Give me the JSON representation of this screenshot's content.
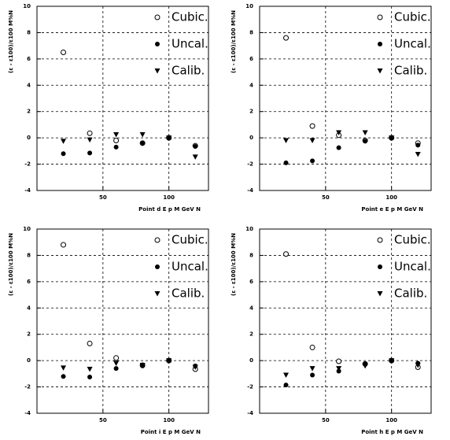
{
  "chart_data": [
    {
      "type": "scatter",
      "xlabel": "Point d   E p M GeV N",
      "ylabel": "(ε - ε100)/ε100 M%N",
      "x": [
        20,
        40,
        60,
        80,
        100,
        120
      ],
      "xlim": [
        0,
        130
      ],
      "ylim": [
        -4,
        10
      ],
      "xticks": [
        50,
        100
      ],
      "yticks": [
        -4,
        -2,
        0,
        2,
        4,
        6,
        8,
        10
      ],
      "grid": true,
      "series": [
        {
          "name": "Cubic.",
          "marker": "open-circle",
          "color": "#000000",
          "values": [
            6.5,
            0.35,
            -0.2,
            -0.4,
            0,
            -0.6
          ]
        },
        {
          "name": "Uncal.",
          "marker": "filled-circle",
          "color": "#000000",
          "values": [
            -1.2,
            -1.15,
            -0.7,
            -0.4,
            0,
            -0.65
          ]
        },
        {
          "name": "Calib.",
          "marker": "triangle-down",
          "color": "#000000",
          "values": [
            -0.25,
            -0.15,
            0.25,
            0.25,
            0,
            -1.45
          ]
        }
      ]
    },
    {
      "type": "scatter",
      "xlabel": "Point e   E p M GeV N",
      "ylabel": "(ε - ε100)/ε100 M%N",
      "x": [
        20,
        40,
        60,
        80,
        100,
        120
      ],
      "xlim": [
        0,
        130
      ],
      "ylim": [
        -4,
        10
      ],
      "xticks": [
        50,
        100
      ],
      "yticks": [
        -4,
        -2,
        0,
        2,
        4,
        6,
        8,
        10
      ],
      "grid": true,
      "series": [
        {
          "name": "Cubic.",
          "marker": "open-circle",
          "color": "#000000",
          "values": [
            7.6,
            0.9,
            0.2,
            -0.2,
            0,
            -0.4
          ]
        },
        {
          "name": "Uncal.",
          "marker": "filled-circle",
          "color": "#000000",
          "values": [
            -1.9,
            -1.75,
            -0.75,
            -0.25,
            0,
            -0.55
          ]
        },
        {
          "name": "Calib.",
          "marker": "triangle-down",
          "color": "#000000",
          "values": [
            -0.2,
            -0.2,
            0.4,
            0.4,
            0,
            -1.25
          ]
        }
      ]
    },
    {
      "type": "scatter",
      "xlabel": "Point i   E p M GeV N",
      "ylabel": "(ε - ε100)/ε100 M%N",
      "x": [
        20,
        40,
        60,
        80,
        100,
        120
      ],
      "xlim": [
        0,
        130
      ],
      "ylim": [
        -4,
        10
      ],
      "xticks": [
        50,
        100
      ],
      "yticks": [
        -4,
        -2,
        0,
        2,
        4,
        6,
        8,
        10
      ],
      "grid": true,
      "series": [
        {
          "name": "Cubic.",
          "marker": "open-circle",
          "color": "#000000",
          "values": [
            8.8,
            1.3,
            0.2,
            -0.35,
            0,
            -0.65
          ]
        },
        {
          "name": "Uncal.",
          "marker": "filled-circle",
          "color": "#000000",
          "values": [
            -1.2,
            -1.25,
            -0.6,
            -0.4,
            0,
            -0.4
          ]
        },
        {
          "name": "Calib.",
          "marker": "triangle-down",
          "color": "#000000",
          "values": [
            -0.55,
            -0.65,
            -0.2,
            -0.35,
            0,
            -0.5
          ]
        }
      ]
    },
    {
      "type": "scatter",
      "xlabel": "Point h   E p M GeV N",
      "ylabel": "(ε - ε100)/ε100 M%N",
      "x": [
        20,
        40,
        60,
        80,
        100,
        120
      ],
      "xlim": [
        0,
        130
      ],
      "ylim": [
        -4,
        10
      ],
      "xticks": [
        50,
        100
      ],
      "yticks": [
        -4,
        -2,
        0,
        2,
        4,
        6,
        8,
        10
      ],
      "grid": true,
      "series": [
        {
          "name": "Cubic.",
          "marker": "open-circle",
          "color": "#000000",
          "values": [
            8.1,
            1.0,
            -0.05,
            -0.25,
            0,
            -0.5
          ]
        },
        {
          "name": "Uncal.",
          "marker": "filled-circle",
          "color": "#000000",
          "values": [
            -1.85,
            -1.1,
            -0.8,
            -0.25,
            0,
            -0.2
          ]
        },
        {
          "name": "Calib.",
          "marker": "triangle-down",
          "color": "#000000",
          "values": [
            -1.1,
            -0.6,
            -0.6,
            -0.4,
            0,
            -0.35
          ]
        }
      ]
    }
  ]
}
